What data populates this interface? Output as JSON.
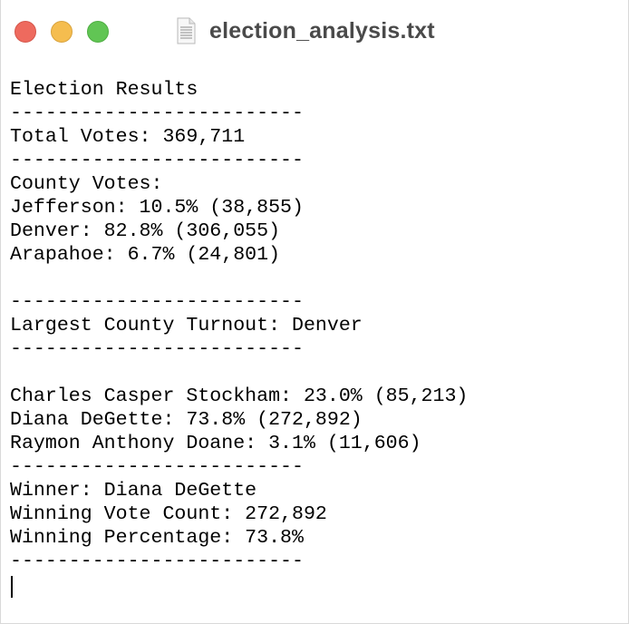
{
  "window": {
    "title": "election_analysis.txt",
    "file_icon": "text-document-icon"
  },
  "text_lines": [
    "Election Results",
    "-------------------------",
    "Total Votes: 369,711",
    "-------------------------",
    "County Votes:",
    "Jefferson: 10.5% (38,855)",
    "Denver: 82.8% (306,055)",
    "Arapahoe: 6.7% (24,801)",
    "",
    "-------------------------",
    "Largest County Turnout: Denver",
    "-------------------------",
    "",
    "Charles Casper Stockham: 23.0% (85,213)",
    "Diana DeGette: 73.8% (272,892)",
    "Raymon Anthony Doane: 3.1% (11,606)",
    "-------------------------",
    "Winner: Diana DeGette",
    "Winning Vote Count: 272,892",
    "Winning Percentage: 73.8%",
    "-------------------------"
  ],
  "colors": {
    "close": "#ee6a5e",
    "minimize": "#f5bd4f",
    "zoom": "#61c554",
    "title": "#4a4a4a",
    "text": "#000000"
  }
}
